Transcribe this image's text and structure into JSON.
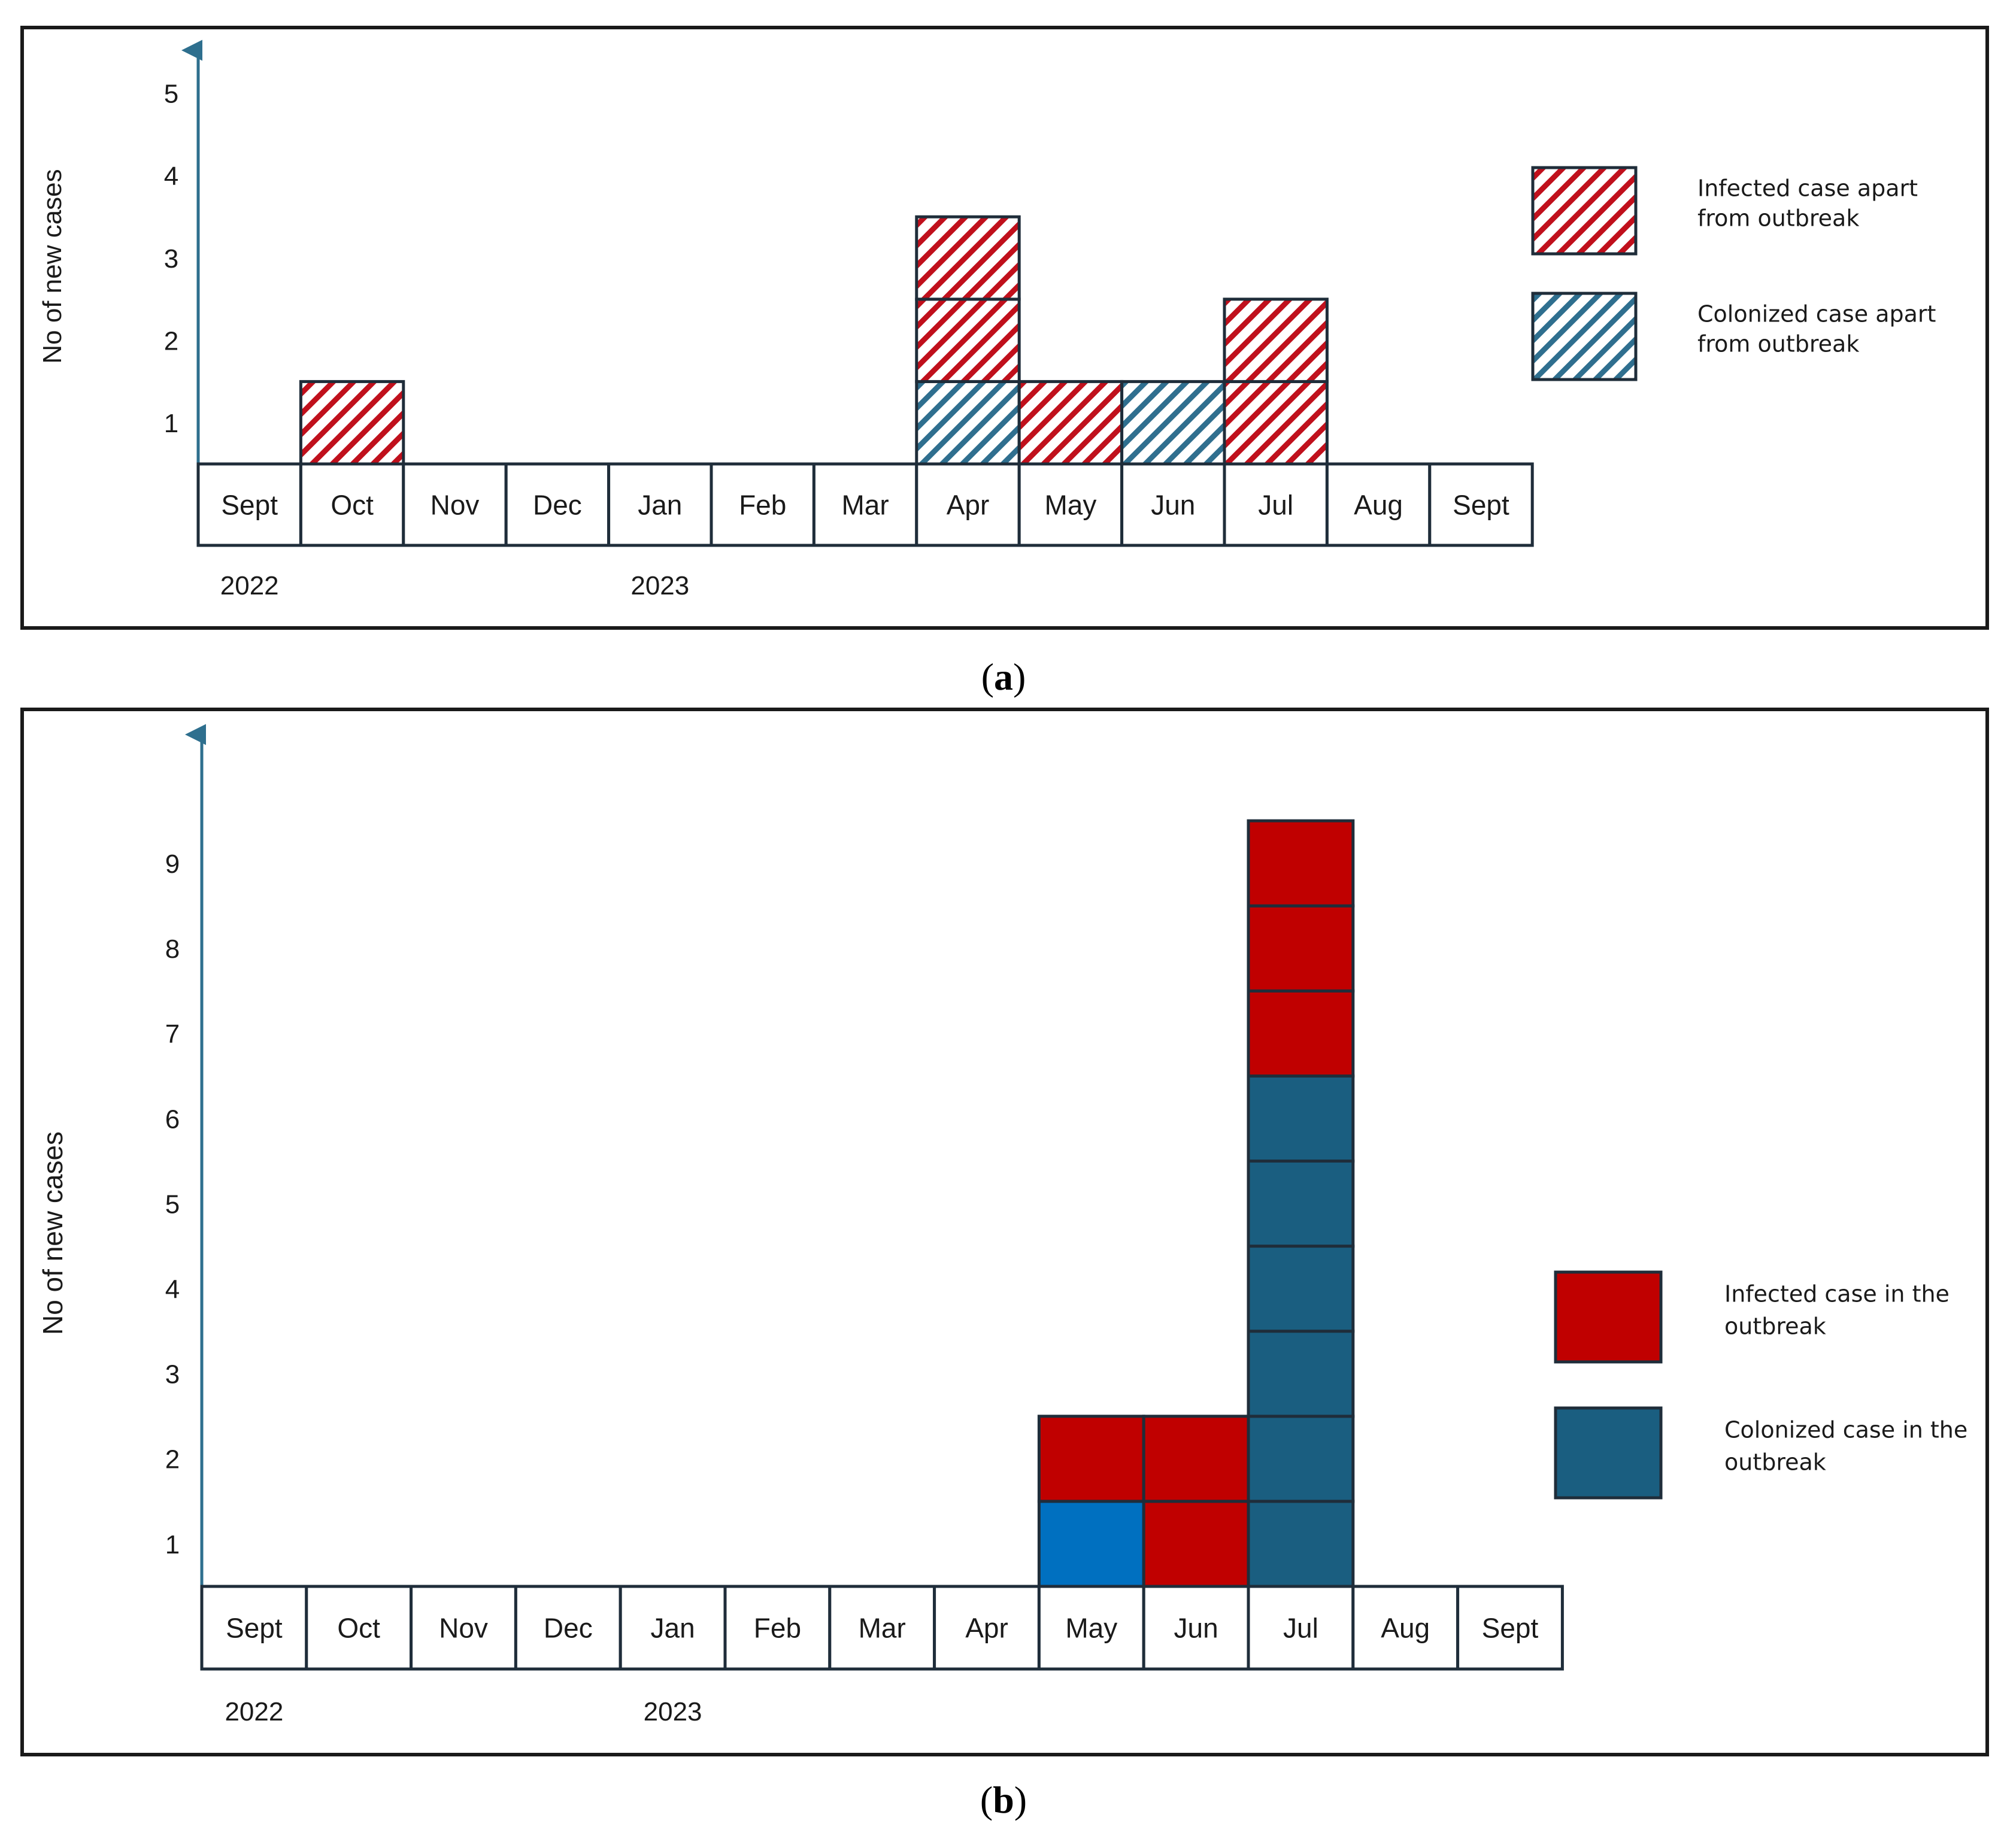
{
  "panels": [
    {
      "caption_letter": "a",
      "ylabel": "No of new cases",
      "ytick_labels": [
        "1",
        "2",
        "3",
        "4",
        "5"
      ],
      "month_labels": [
        "Sept",
        "Oct",
        "Nov",
        "Dec",
        "Jan",
        "Feb",
        "Mar",
        "Apr",
        "May",
        "Jun",
        "Jul",
        "Aug",
        "Sept"
      ],
      "year_labels": [
        {
          "text": "2022",
          "month_index": 0
        },
        {
          "text": "2023",
          "month_index": 4
        }
      ],
      "legend": [
        {
          "line1": "Infected case apart",
          "line2": "from outbreak",
          "series_index": 0
        },
        {
          "line1": "Colonized case apart",
          "line2": "from outbreak",
          "series_index": 1
        }
      ]
    },
    {
      "caption_letter": "b",
      "ylabel": "No of new cases",
      "ytick_labels": [
        "1",
        "2",
        "3",
        "4",
        "5",
        "6",
        "7",
        "8",
        "9"
      ],
      "month_labels": [
        "Sept",
        "Oct",
        "Nov",
        "Dec",
        "Jan",
        "Feb",
        "Mar",
        "Apr",
        "May",
        "Jun",
        "Jul",
        "Aug",
        "Sept"
      ],
      "year_labels": [
        {
          "text": "2022",
          "month_index": 0
        },
        {
          "text": "2023",
          "month_index": 4
        }
      ],
      "legend": [
        {
          "line1": "Infected case in the",
          "line2": "outbreak",
          "series_index": 0
        },
        {
          "line1": "Colonized case in the",
          "line2": "outbreak",
          "series_index": 1
        }
      ]
    }
  ],
  "chart_data": [
    {
      "type": "bar",
      "stacked": true,
      "categories": [
        "Sept",
        "Oct",
        "Nov",
        "Dec",
        "Jan",
        "Feb",
        "Mar",
        "Apr",
        "May",
        "Jun",
        "Jul",
        "Aug",
        "Sept"
      ],
      "series": [
        {
          "name": "Infected case apart from outbreak",
          "values": [
            0,
            1,
            0,
            0,
            0,
            0,
            0,
            2,
            1,
            0,
            2,
            0,
            0
          ],
          "color": "#c0101c",
          "pattern": "hatch"
        },
        {
          "name": "Colonized case apart from outbreak",
          "values": [
            0,
            0,
            0,
            0,
            0,
            0,
            0,
            1,
            0,
            1,
            0,
            0,
            0
          ],
          "color": "#2f6f8f",
          "pattern": "hatch"
        }
      ],
      "stack_order_bottom_to_top": [
        "Colonized case apart from outbreak",
        "Infected case apart from outbreak"
      ],
      "ylabel": "No of new cases",
      "ylim": [
        0,
        5
      ],
      "grid": false,
      "legend_position": "right"
    },
    {
      "type": "bar",
      "stacked": true,
      "categories": [
        "Sept",
        "Oct",
        "Nov",
        "Dec",
        "Jan",
        "Feb",
        "Mar",
        "Apr",
        "May",
        "Jun",
        "Jul",
        "Aug",
        "Sept"
      ],
      "series": [
        {
          "name": "Infected case in the outbreak",
          "values": [
            0,
            0,
            0,
            0,
            0,
            0,
            0,
            0,
            1,
            2,
            3,
            0,
            0
          ],
          "color": "#c00000",
          "pattern": "solid"
        },
        {
          "name": "Colonized case in the outbreak",
          "values": [
            0,
            0,
            0,
            0,
            0,
            0,
            0,
            0,
            1,
            0,
            6,
            0,
            0
          ],
          "color": "#1a5e80",
          "pattern": "solid"
        }
      ],
      "cell_colors_note_colors": {
        "May_colonized": "#0070c0"
      },
      "ylabel": "No of new cases",
      "ylim": [
        0,
        9
      ],
      "grid": false,
      "legend_position": "right"
    }
  ],
  "colors": {
    "frame": "#1a1a1a",
    "axis": "#2e6f8e",
    "cell_border": "#1f2d3a",
    "infected_hatch": "#c0101c",
    "colonized_hatch": "#2f6f8f",
    "infected_solid": "#c00000",
    "colonized_solid": "#1a5e80",
    "colonized_may_solid": "#0070c0"
  }
}
